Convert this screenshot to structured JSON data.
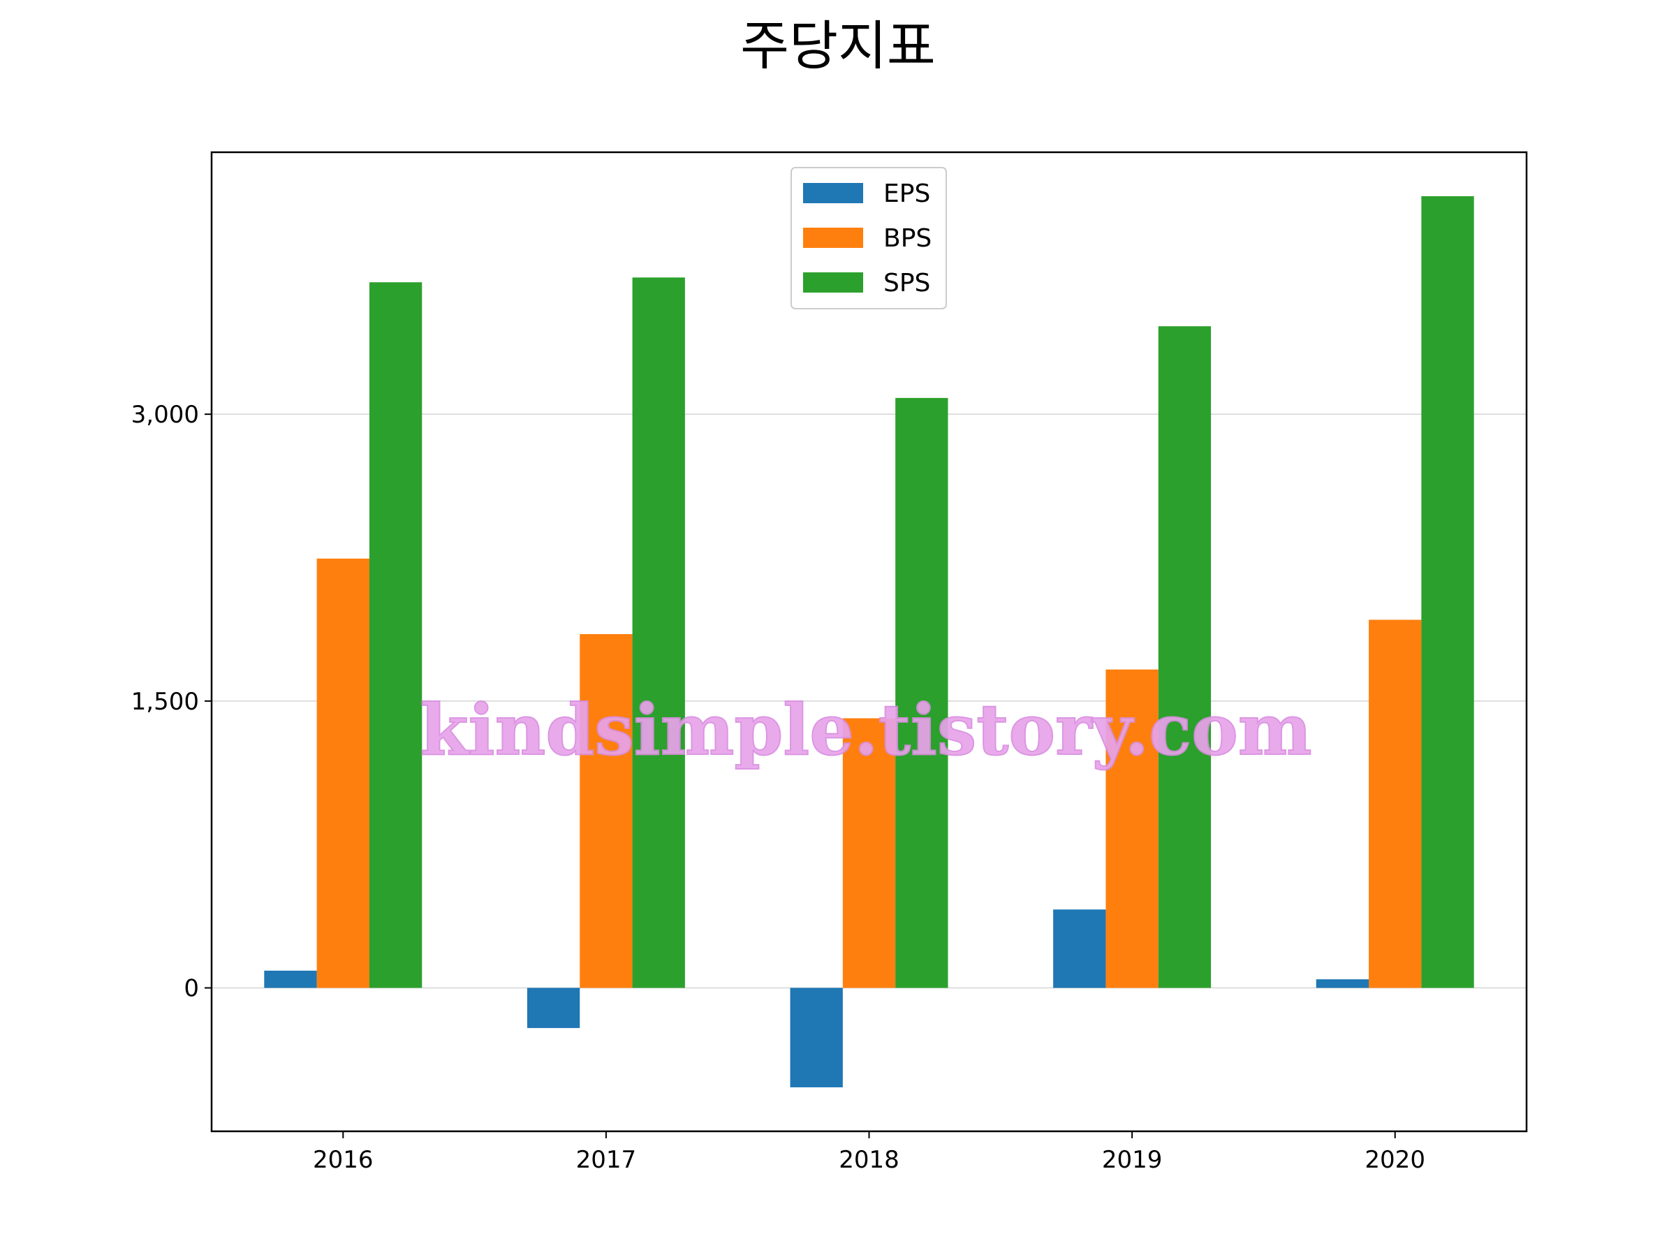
{
  "chart_data": {
    "type": "bar",
    "title": "주당지표",
    "categories": [
      "2016",
      "2017",
      "2018",
      "2019",
      "2020"
    ],
    "series": [
      {
        "name": "EPS",
        "color": "#1f77b4",
        "values": [
          90,
          -210,
          -520,
          410,
          45
        ]
      },
      {
        "name": "BPS",
        "color": "#ff7f0e",
        "values": [
          2245,
          1850,
          1410,
          1665,
          1925
        ]
      },
      {
        "name": "SPS",
        "color": "#2ca02c",
        "values": [
          3690,
          3715,
          3085,
          3460,
          4140
        ]
      }
    ],
    "yticks": [
      0,
      1500,
      3000
    ],
    "ytick_labels": [
      "0",
      "1,500",
      "3,000"
    ],
    "ylim": [
      -750,
      4370
    ],
    "grid": "y",
    "legend_position": "top-center"
  },
  "watermark": "kindsimple.tistory.com"
}
